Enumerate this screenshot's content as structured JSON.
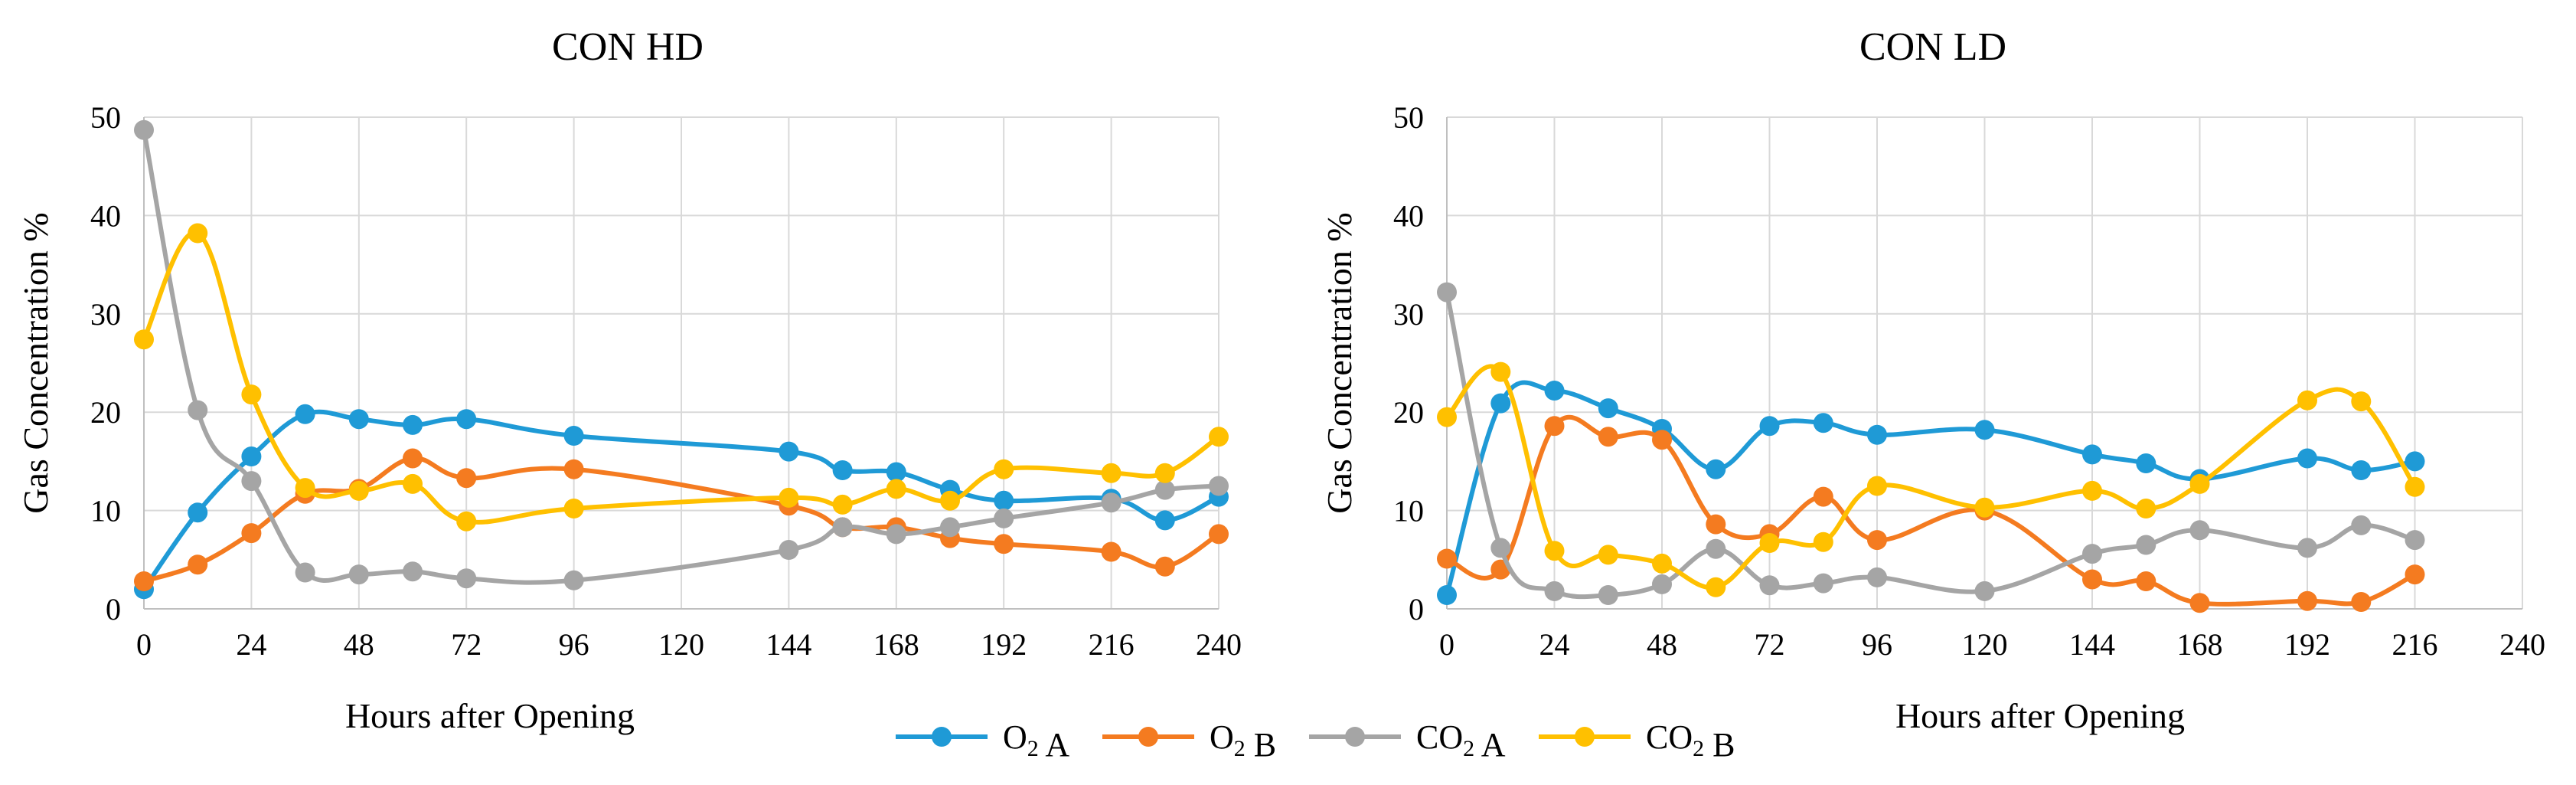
{
  "chart_data": [
    {
      "type": "line",
      "title": "CON HD",
      "xlabel": "Hours after Opening",
      "ylabel": "Gas Concentration %",
      "xlim": [
        0,
        240
      ],
      "ylim": [
        0,
        50
      ],
      "xticks": [
        "0",
        "24",
        "48",
        "72",
        "96",
        "120",
        "144",
        "168",
        "192",
        "216",
        "240"
      ],
      "yticks": [
        "0",
        "10",
        "20",
        "30",
        "40",
        "50"
      ],
      "grid": true,
      "series": [
        {
          "key": "o2a",
          "name": "O₂ A",
          "color": "#1f9ad6",
          "x": [
            0,
            12,
            24,
            36,
            48,
            60,
            72,
            96,
            144,
            156,
            168,
            180,
            192,
            216,
            228,
            240
          ],
          "y": [
            2.0,
            9.8,
            15.5,
            19.8,
            19.3,
            18.7,
            19.3,
            17.6,
            16.0,
            14.1,
            13.9,
            12.1,
            11.0,
            11.2,
            9.0,
            11.4
          ]
        },
        {
          "key": "o2b",
          "name": "O₂ B",
          "color": "#f47b20",
          "x": [
            0,
            12,
            24,
            36,
            48,
            60,
            72,
            96,
            144,
            156,
            168,
            180,
            192,
            216,
            228,
            240
          ],
          "y": [
            2.8,
            4.5,
            7.7,
            11.7,
            12.2,
            15.3,
            13.3,
            14.2,
            10.5,
            8.3,
            8.3,
            7.2,
            6.6,
            5.8,
            4.3,
            7.6
          ]
        },
        {
          "key": "co2a",
          "name": "CO₂ A",
          "color": "#a5a5a5",
          "x": [
            0,
            12,
            24,
            36,
            48,
            60,
            72,
            96,
            144,
            156,
            168,
            180,
            192,
            216,
            228,
            240
          ],
          "y": [
            48.7,
            20.2,
            13.0,
            3.7,
            3.5,
            3.8,
            3.1,
            2.9,
            6.0,
            8.3,
            7.6,
            8.3,
            9.2,
            10.8,
            12.1,
            12.5
          ]
        },
        {
          "key": "co2b",
          "name": "CO₂ B",
          "color": "#ffc000",
          "x": [
            0,
            12,
            24,
            36,
            48,
            60,
            72,
            96,
            144,
            156,
            168,
            180,
            192,
            216,
            228,
            240
          ],
          "y": [
            27.4,
            38.2,
            21.8,
            12.3,
            12.0,
            12.7,
            8.9,
            10.2,
            11.3,
            10.6,
            12.2,
            11.0,
            14.2,
            13.8,
            13.8,
            17.5
          ]
        }
      ]
    },
    {
      "type": "line",
      "title": "CON LD",
      "xlabel": "Hours after Opening",
      "ylabel": "Gas Concentration %",
      "xlim": [
        0,
        240
      ],
      "ylim": [
        0,
        50
      ],
      "xticks": [
        "0",
        "24",
        "48",
        "72",
        "96",
        "120",
        "144",
        "168",
        "192",
        "216",
        "240"
      ],
      "yticks": [
        "0",
        "10",
        "20",
        "30",
        "40",
        "50"
      ],
      "grid": true,
      "series": [
        {
          "key": "o2a",
          "name": "O₂ A",
          "color": "#1f9ad6",
          "x": [
            0,
            12,
            24,
            36,
            48,
            60,
            72,
            84,
            96,
            120,
            144,
            156,
            168,
            192,
            204,
            216
          ],
          "y": [
            1.4,
            20.9,
            22.2,
            20.4,
            18.3,
            14.2,
            18.6,
            18.9,
            17.7,
            18.2,
            15.7,
            14.8,
            13.2,
            15.3,
            14.1,
            15.0
          ]
        },
        {
          "key": "o2b",
          "name": "O₂ B",
          "color": "#f47b20",
          "x": [
            0,
            12,
            24,
            36,
            48,
            60,
            72,
            84,
            96,
            120,
            144,
            156,
            168,
            192,
            204,
            216
          ],
          "y": [
            5.1,
            4.0,
            18.6,
            17.5,
            17.2,
            8.6,
            7.6,
            11.4,
            7.0,
            10.0,
            3.0,
            2.8,
            0.6,
            0.8,
            0.7,
            3.5
          ]
        },
        {
          "key": "co2a",
          "name": "CO₂ A",
          "color": "#a5a5a5",
          "x": [
            0,
            12,
            24,
            36,
            48,
            60,
            72,
            84,
            96,
            120,
            144,
            156,
            168,
            192,
            204,
            216
          ],
          "y": [
            32.2,
            6.2,
            1.8,
            1.4,
            2.5,
            6.1,
            2.4,
            2.6,
            3.2,
            1.8,
            5.6,
            6.5,
            8.0,
            6.2,
            8.5,
            7.0
          ]
        },
        {
          "key": "co2b",
          "name": "CO₂ B",
          "color": "#ffc000",
          "x": [
            0,
            12,
            24,
            36,
            48,
            60,
            72,
            84,
            96,
            120,
            144,
            156,
            168,
            192,
            204,
            216
          ],
          "y": [
            19.5,
            24.1,
            5.9,
            5.5,
            4.6,
            2.2,
            6.7,
            6.8,
            12.5,
            10.3,
            12.0,
            10.2,
            12.7,
            21.2,
            21.1,
            12.4
          ]
        }
      ]
    }
  ],
  "legend": {
    "placement": "bottom-center",
    "items": [
      {
        "label": "O₂ A",
        "color": "#1f9ad6"
      },
      {
        "label": "O₂ B",
        "color": "#f47b20"
      },
      {
        "label": "CO₂ A",
        "color": "#a5a5a5"
      },
      {
        "label": "CO₂ B",
        "color": "#ffc000"
      }
    ]
  }
}
